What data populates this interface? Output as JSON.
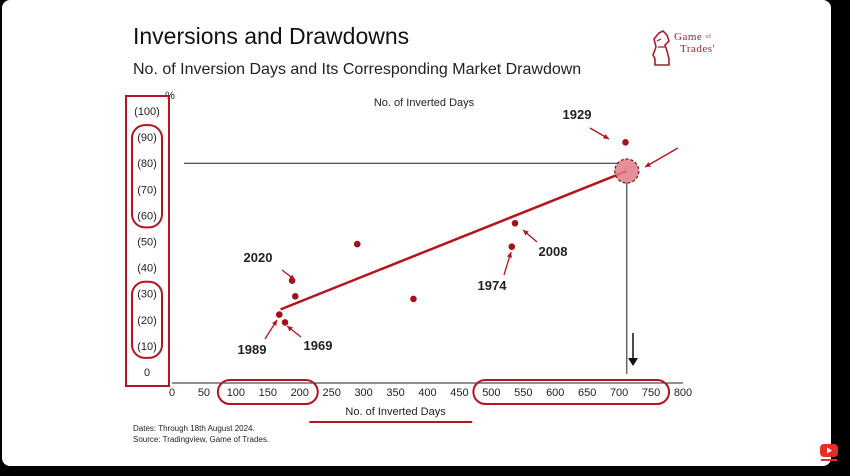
{
  "title": "Inversions and Drawdowns",
  "subtitle": "No. of Inversion Days and Its Corresponding Market Drawdown",
  "logo": {
    "line1": "Game",
    "line1_small": "of",
    "line2": "Trades'"
  },
  "footnote": {
    "line1": "Dates: Through 18th August 2024.",
    "line2": "Source: Tradingview, Game of Trades."
  },
  "colors": {
    "accent": "#b5141f",
    "point": "#a3101c",
    "highlight": "#e07c86"
  },
  "chart_data": {
    "type": "scatter",
    "title": "No. of Inverted Days",
    "xlabel": "No. of Inverted Days",
    "ylabel": "%",
    "xlim": [
      0,
      800
    ],
    "ylim": [
      0,
      100
    ],
    "x_ticks": [
      0,
      50,
      100,
      150,
      200,
      250,
      300,
      350,
      400,
      450,
      500,
      550,
      600,
      650,
      700,
      750,
      800
    ],
    "y_ticks": [
      {
        "value": 0,
        "label": "0"
      },
      {
        "value": 10,
        "label": "(10)"
      },
      {
        "value": 20,
        "label": "(20)"
      },
      {
        "value": 30,
        "label": "(30)"
      },
      {
        "value": 40,
        "label": "(40)"
      },
      {
        "value": 50,
        "label": "(50)"
      },
      {
        "value": 60,
        "label": "(60)"
      },
      {
        "value": 70,
        "label": "(70)"
      },
      {
        "value": 80,
        "label": "(80)"
      },
      {
        "value": 90,
        "label": "(90)"
      },
      {
        "value": 100,
        "label": "(100)"
      }
    ],
    "points": [
      {
        "x": 710,
        "y": 88,
        "label": "1929"
      },
      {
        "x": 537,
        "y": 57,
        "label": "2008"
      },
      {
        "x": 532,
        "y": 48,
        "label": "1974"
      },
      {
        "x": 290,
        "y": 49,
        "label": ""
      },
      {
        "x": 378,
        "y": 28,
        "label": ""
      },
      {
        "x": 188,
        "y": 35,
        "label": "2020"
      },
      {
        "x": 193,
        "y": 29,
        "label": ""
      },
      {
        "x": 168,
        "y": 22,
        "label": "1989"
      },
      {
        "x": 177,
        "y": 19,
        "label": "1969"
      }
    ],
    "trendline": [
      {
        "x": 170,
        "y": 24
      },
      {
        "x": 712,
        "y": 77
      }
    ],
    "highlight_point": {
      "x": 712,
      "y": 77
    },
    "reference_y": 80,
    "reference_x": 712,
    "circled_y_groups": [
      [
        60,
        90
      ],
      [
        10,
        30
      ],
      [
        0,
        100
      ]
    ],
    "circled_x_groups": [
      [
        100,
        200
      ],
      [
        500,
        750
      ]
    ],
    "grid": false
  }
}
